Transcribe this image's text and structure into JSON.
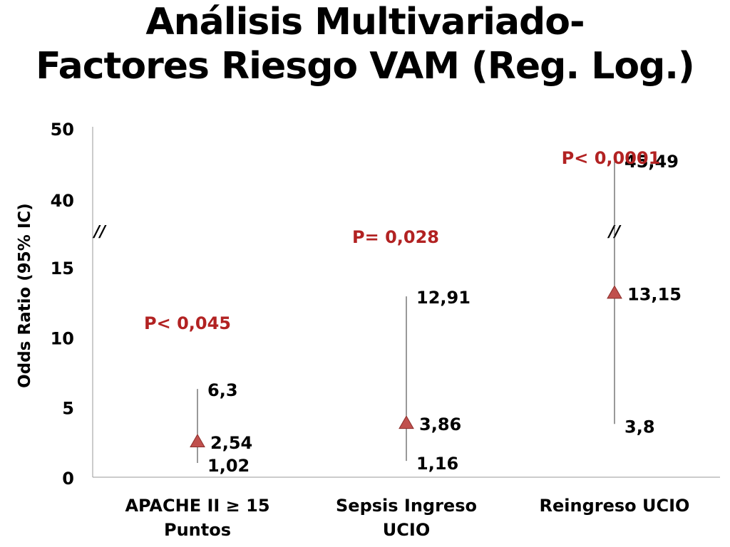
{
  "title_line1": "Análisis Multivariado-",
  "title_line2": "Factores Riesgo VAM (Reg. Log.)",
  "chart_data": {
    "type": "scatter",
    "title": "Análisis Multivariado- Factores Riesgo VAM (Reg. Log.)",
    "ylabel": "Odds Ratio (95% IC)",
    "xlabel": "",
    "ylim": [
      0,
      50
    ],
    "y_scale": "broken",
    "y_break": {
      "lower": [
        0,
        15
      ],
      "upper": [
        40,
        50
      ]
    },
    "y_ticks": [
      "0",
      "5",
      "10",
      "15",
      "40",
      "50"
    ],
    "grid": false,
    "categories": [
      {
        "line1": "APACHE II ≥ 15",
        "line2": "Puntos"
      },
      {
        "line1": "Sepsis Ingreso",
        "line2": "UCIO"
      },
      {
        "line1": "Reingreso UCIO",
        "line2": ""
      }
    ],
    "points": [
      {
        "or": 2.54,
        "low": 1.02,
        "high": 6.3,
        "or_label": "2,54",
        "low_label": "1,02",
        "high_label": "6,3",
        "p": "P< 0,045"
      },
      {
        "or": 3.86,
        "low": 1.16,
        "high": 12.91,
        "or_label": "3,86",
        "low_label": "1,16",
        "high_label": "12,91",
        "p": "P= 0,028"
      },
      {
        "or": 13.15,
        "low": 3.8,
        "high": 45.49,
        "or_label": "13,15",
        "low_label": "3,8",
        "high_label": "45,49",
        "p": "P< 0,0001"
      }
    ],
    "break_mark": "//",
    "colors": {
      "marker": "#c0504d",
      "marker_edge": "#8b2e2b",
      "p_text": "#b22222",
      "axis": "#999999",
      "text": "#000000"
    }
  }
}
